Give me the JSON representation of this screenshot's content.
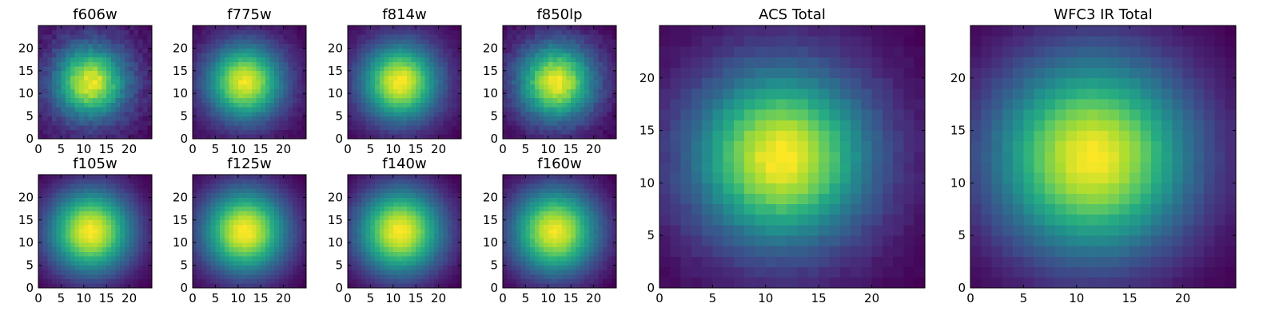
{
  "chart_data": [
    {
      "type": "heatmap",
      "title": "f606w",
      "xticks": [
        0,
        5,
        10,
        15,
        20
      ],
      "yticks": [
        0,
        5,
        10,
        15,
        20
      ],
      "xlim": [
        0,
        25
      ],
      "ylim": [
        0,
        25
      ],
      "grid": false,
      "colormap": "viridis",
      "center": [
        11.5,
        12.5
      ],
      "sigma": 5.2,
      "noise": 0.12
    },
    {
      "type": "heatmap",
      "title": "f775w",
      "xticks": [
        0,
        5,
        10,
        15,
        20
      ],
      "yticks": [
        0,
        5,
        10,
        15,
        20
      ],
      "xlim": [
        0,
        25
      ],
      "ylim": [
        0,
        25
      ],
      "grid": false,
      "colormap": "viridis",
      "center": [
        11.5,
        12.5
      ],
      "sigma": 5.6,
      "noise": 0.06
    },
    {
      "type": "heatmap",
      "title": "f814w",
      "xticks": [
        0,
        5,
        10,
        15,
        20
      ],
      "yticks": [
        0,
        5,
        10,
        15,
        20
      ],
      "xlim": [
        0,
        25
      ],
      "ylim": [
        0,
        25
      ],
      "grid": false,
      "colormap": "viridis",
      "center": [
        11.5,
        12.5
      ],
      "sigma": 5.6,
      "noise": 0.05
    },
    {
      "type": "heatmap",
      "title": "f850lp",
      "xticks": [
        0,
        5,
        10,
        15,
        20
      ],
      "yticks": [
        0,
        5,
        10,
        15,
        20
      ],
      "xlim": [
        0,
        25
      ],
      "ylim": [
        0,
        25
      ],
      "grid": false,
      "colormap": "viridis",
      "center": [
        11.8,
        12.5
      ],
      "sigma": 5.6,
      "noise": 0.09
    },
    {
      "type": "heatmap",
      "title": "f105w",
      "xticks": [
        0,
        5,
        10,
        15,
        20
      ],
      "yticks": [
        0,
        5,
        10,
        15,
        20
      ],
      "xlim": [
        0,
        25
      ],
      "ylim": [
        0,
        25
      ],
      "grid": false,
      "colormap": "viridis",
      "center": [
        11.5,
        12.5
      ],
      "sigma": 6.3,
      "noise": 0.03
    },
    {
      "type": "heatmap",
      "title": "f125w",
      "xticks": [
        0,
        5,
        10,
        15,
        20
      ],
      "yticks": [
        0,
        5,
        10,
        15,
        20
      ],
      "xlim": [
        0,
        25
      ],
      "ylim": [
        0,
        25
      ],
      "grid": false,
      "colormap": "viridis",
      "center": [
        11.5,
        12.5
      ],
      "sigma": 6.3,
      "noise": 0.03
    },
    {
      "type": "heatmap",
      "title": "f140w",
      "xticks": [
        0,
        5,
        10,
        15,
        20
      ],
      "yticks": [
        0,
        5,
        10,
        15,
        20
      ],
      "xlim": [
        0,
        25
      ],
      "ylim": [
        0,
        25
      ],
      "grid": false,
      "colormap": "viridis",
      "center": [
        11.5,
        12.5
      ],
      "sigma": 6.5,
      "noise": 0.03
    },
    {
      "type": "heatmap",
      "title": "f160w",
      "xticks": [
        0,
        5,
        10,
        15,
        20
      ],
      "yticks": [
        0,
        5,
        10,
        15,
        20
      ],
      "xlim": [
        0,
        25
      ],
      "ylim": [
        0,
        25
      ],
      "grid": false,
      "colormap": "viridis",
      "center": [
        11.5,
        12.5
      ],
      "sigma": 6.5,
      "noise": 0.04
    },
    {
      "type": "heatmap",
      "title": "ACS Total",
      "xticks": [
        0,
        5,
        10,
        15,
        20
      ],
      "yticks": [
        0,
        5,
        10,
        15,
        20
      ],
      "xlim": [
        0,
        25
      ],
      "ylim": [
        0,
        25
      ],
      "grid": false,
      "colormap": "viridis",
      "center": [
        11.5,
        12.5
      ],
      "sigma": 5.5,
      "noise": 0.04
    },
    {
      "type": "heatmap",
      "title": "WFC3 IR Total",
      "xticks": [
        0,
        5,
        10,
        15,
        20
      ],
      "yticks": [
        0,
        5,
        10,
        15,
        20
      ],
      "xlim": [
        0,
        25
      ],
      "ylim": [
        0,
        25
      ],
      "grid": false,
      "colormap": "viridis",
      "center": [
        11.5,
        12.5
      ],
      "sigma": 6.4,
      "noise": 0.02
    }
  ]
}
